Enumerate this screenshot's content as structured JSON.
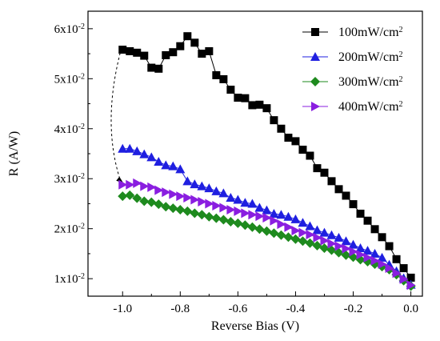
{
  "chart_data": {
    "type": "line",
    "xlabel": "Reverse Bias (V)",
    "ylabel": "R (A/W)",
    "xlim": [
      -1.12,
      0.04
    ],
    "ylim": [
      0.0065,
      0.0635
    ],
    "x_ticks": [
      -1.0,
      -0.8,
      -0.6,
      -0.4,
      -0.2,
      0.0
    ],
    "x_tick_labels": [
      "-1.0",
      "-0.8",
      "-0.6",
      "-0.4",
      "-0.2",
      "0.0"
    ],
    "y_ticks": [
      {
        "value": 0.01,
        "mantissa": "1x10",
        "exponent": "-2"
      },
      {
        "value": 0.02,
        "mantissa": "2x10",
        "exponent": "-2"
      },
      {
        "value": 0.03,
        "mantissa": "3x10",
        "exponent": "-2"
      },
      {
        "value": 0.04,
        "mantissa": "4x10",
        "exponent": "-2"
      },
      {
        "value": 0.05,
        "mantissa": "5x10",
        "exponent": "-2"
      },
      {
        "value": 0.06,
        "mantissa": "6x10",
        "exponent": "-2"
      }
    ],
    "legend_position": "top-right",
    "annotation": "dashed curved arrow from the 100mW/cm2 series at -1.0 V down to the 400mW/cm2 series at -1.0 V",
    "x": [
      -1.0,
      -0.975,
      -0.95,
      -0.925,
      -0.9,
      -0.875,
      -0.85,
      -0.825,
      -0.8,
      -0.775,
      -0.75,
      -0.725,
      -0.7,
      -0.675,
      -0.65,
      -0.625,
      -0.6,
      -0.575,
      -0.55,
      -0.525,
      -0.5,
      -0.475,
      -0.45,
      -0.425,
      -0.4,
      -0.375,
      -0.35,
      -0.325,
      -0.3,
      -0.275,
      -0.25,
      -0.225,
      -0.2,
      -0.175,
      -0.15,
      -0.125,
      -0.1,
      -0.075,
      -0.05,
      -0.025,
      0.0
    ],
    "series": [
      {
        "name": "100mW/cm",
        "name_sup": "2",
        "color": "#000000",
        "marker": "square",
        "values": [
          0.0558,
          0.0555,
          0.0552,
          0.0546,
          0.0522,
          0.052,
          0.0547,
          0.0553,
          0.0565,
          0.0585,
          0.0572,
          0.055,
          0.0555,
          0.0507,
          0.0499,
          0.0478,
          0.0462,
          0.0461,
          0.0447,
          0.0448,
          0.0441,
          0.0417,
          0.04,
          0.0382,
          0.0375,
          0.0358,
          0.0346,
          0.0321,
          0.0312,
          0.0295,
          0.0279,
          0.0266,
          0.0249,
          0.023,
          0.0216,
          0.0199,
          0.0183,
          0.0165,
          0.0139,
          0.0121,
          0.0102
        ]
      },
      {
        "name": "200mW/cm",
        "name_sup": "2",
        "color": "#1f1fe0",
        "marker": "triangle-up",
        "values": [
          0.036,
          0.036,
          0.0355,
          0.0349,
          0.0343,
          0.0334,
          0.0327,
          0.0325,
          0.0319,
          0.0295,
          0.0289,
          0.0285,
          0.0281,
          0.0275,
          0.0271,
          0.0262,
          0.0258,
          0.0252,
          0.025,
          0.0242,
          0.0237,
          0.023,
          0.0228,
          0.0224,
          0.0219,
          0.0212,
          0.0205,
          0.0197,
          0.0192,
          0.0187,
          0.0182,
          0.0175,
          0.0168,
          0.0161,
          0.0156,
          0.015,
          0.0142,
          0.0128,
          0.0115,
          0.0101,
          0.0088
        ]
      },
      {
        "name": "300mW/cm",
        "name_sup": "2",
        "color": "#1e8a1e",
        "marker": "diamond",
        "values": [
          0.0265,
          0.0267,
          0.0261,
          0.0255,
          0.0253,
          0.0249,
          0.0244,
          0.0241,
          0.0238,
          0.0235,
          0.0231,
          0.0228,
          0.0224,
          0.0221,
          0.0218,
          0.0214,
          0.0211,
          0.0207,
          0.0203,
          0.0199,
          0.0195,
          0.0191,
          0.0187,
          0.0183,
          0.0179,
          0.0175,
          0.0171,
          0.0166,
          0.0161,
          0.0157,
          0.0152,
          0.0147,
          0.0143,
          0.0138,
          0.0134,
          0.0129,
          0.0124,
          0.0118,
          0.0108,
          0.0096,
          0.0085
        ]
      },
      {
        "name": "400mW/cm",
        "name_sup": "2",
        "color": "#8a1ee0",
        "marker": "triangle-right",
        "values": [
          0.0288,
          0.0288,
          0.0291,
          0.0285,
          0.0283,
          0.0277,
          0.0273,
          0.0269,
          0.0265,
          0.0262,
          0.0258,
          0.0254,
          0.025,
          0.0246,
          0.0242,
          0.0238,
          0.0235,
          0.0231,
          0.0228,
          0.0225,
          0.0222,
          0.0216,
          0.0209,
          0.0203,
          0.0196,
          0.0192,
          0.0188,
          0.0182,
          0.0176,
          0.017,
          0.0165,
          0.016,
          0.0154,
          0.0148,
          0.0142,
          0.0136,
          0.0129,
          0.0121,
          0.0111,
          0.0099,
          0.0087
        ]
      }
    ]
  }
}
